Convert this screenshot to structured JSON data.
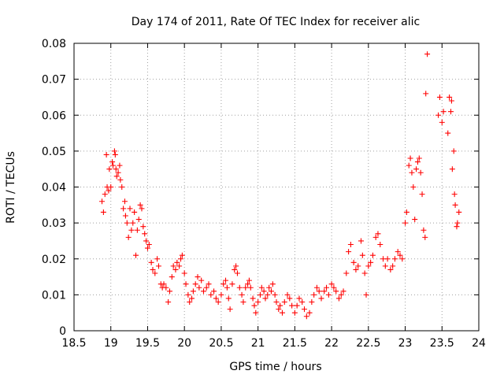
{
  "chart_data": {
    "type": "scatter",
    "title": "Day 174 of 2011, Rate Of TEC Index for receiver alic",
    "xlabel": "GPS time / hours",
    "ylabel": "ROTI / TECUs",
    "xlim": [
      18.5,
      24
    ],
    "ylim": [
      0,
      0.08
    ],
    "x_ticks": [
      "18.5",
      "19",
      "19.5",
      "20",
      "20.5",
      "21",
      "21.5",
      "22",
      "22.5",
      "23",
      "23.5",
      "24"
    ],
    "y_ticks": [
      "0",
      "0.01",
      "0.02",
      "0.03",
      "0.04",
      "0.05",
      "0.06",
      "0.07",
      "0.08"
    ],
    "grid": true,
    "marker": "plus",
    "color": "#ff0000",
    "points": [
      [
        18.88,
        0.036
      ],
      [
        18.9,
        0.033
      ],
      [
        18.92,
        0.038
      ],
      [
        18.94,
        0.049
      ],
      [
        18.95,
        0.04
      ],
      [
        18.97,
        0.039
      ],
      [
        18.98,
        0.045
      ],
      [
        19.0,
        0.04
      ],
      [
        19.02,
        0.047
      ],
      [
        19.03,
        0.046
      ],
      [
        19.05,
        0.05
      ],
      [
        19.06,
        0.049
      ],
      [
        19.07,
        0.045
      ],
      [
        19.08,
        0.043
      ],
      [
        19.1,
        0.044
      ],
      [
        19.12,
        0.046
      ],
      [
        19.13,
        0.042
      ],
      [
        19.15,
        0.04
      ],
      [
        19.17,
        0.034
      ],
      [
        19.19,
        0.036
      ],
      [
        19.2,
        0.032
      ],
      [
        19.22,
        0.03
      ],
      [
        19.24,
        0.026
      ],
      [
        19.26,
        0.034
      ],
      [
        19.28,
        0.028
      ],
      [
        19.3,
        0.03
      ],
      [
        19.32,
        0.033
      ],
      [
        19.34,
        0.021
      ],
      [
        19.36,
        0.028
      ],
      [
        19.38,
        0.031
      ],
      [
        19.4,
        0.035
      ],
      [
        19.42,
        0.034
      ],
      [
        19.44,
        0.029
      ],
      [
        19.46,
        0.027
      ],
      [
        19.48,
        0.025
      ],
      [
        19.5,
        0.023
      ],
      [
        19.52,
        0.024
      ],
      [
        19.55,
        0.019
      ],
      [
        19.57,
        0.017
      ],
      [
        19.6,
        0.016
      ],
      [
        19.63,
        0.02
      ],
      [
        19.65,
        0.018
      ],
      [
        19.68,
        0.013
      ],
      [
        19.7,
        0.012
      ],
      [
        19.72,
        0.013
      ],
      [
        19.75,
        0.012
      ],
      [
        19.78,
        0.008
      ],
      [
        19.8,
        0.011
      ],
      [
        19.83,
        0.015
      ],
      [
        19.85,
        0.018
      ],
      [
        19.88,
        0.017
      ],
      [
        19.9,
        0.019
      ],
      [
        19.93,
        0.018
      ],
      [
        19.95,
        0.02
      ],
      [
        19.97,
        0.021
      ],
      [
        20.0,
        0.016
      ],
      [
        20.02,
        0.013
      ],
      [
        20.05,
        0.01
      ],
      [
        20.07,
        0.008
      ],
      [
        20.1,
        0.009
      ],
      [
        20.12,
        0.011
      ],
      [
        20.15,
        0.013
      ],
      [
        20.18,
        0.015
      ],
      [
        20.2,
        0.012
      ],
      [
        20.23,
        0.014
      ],
      [
        20.26,
        0.011
      ],
      [
        20.3,
        0.012
      ],
      [
        20.33,
        0.013
      ],
      [
        20.36,
        0.01
      ],
      [
        20.4,
        0.011
      ],
      [
        20.43,
        0.009
      ],
      [
        20.46,
        0.008
      ],
      [
        20.5,
        0.01
      ],
      [
        20.53,
        0.013
      ],
      [
        20.56,
        0.014
      ],
      [
        20.58,
        0.012
      ],
      [
        20.6,
        0.009
      ],
      [
        20.62,
        0.006
      ],
      [
        20.65,
        0.013
      ],
      [
        20.68,
        0.017
      ],
      [
        20.7,
        0.018
      ],
      [
        20.72,
        0.016
      ],
      [
        20.75,
        0.012
      ],
      [
        20.78,
        0.01
      ],
      [
        20.8,
        0.008
      ],
      [
        20.83,
        0.012
      ],
      [
        20.86,
        0.013
      ],
      [
        20.88,
        0.014
      ],
      [
        20.9,
        0.012
      ],
      [
        20.93,
        0.009
      ],
      [
        20.95,
        0.007
      ],
      [
        20.97,
        0.005
      ],
      [
        21.0,
        0.008
      ],
      [
        21.03,
        0.01
      ],
      [
        21.05,
        0.012
      ],
      [
        21.08,
        0.011
      ],
      [
        21.1,
        0.009
      ],
      [
        21.13,
        0.01
      ],
      [
        21.15,
        0.012
      ],
      [
        21.18,
        0.011
      ],
      [
        21.2,
        0.013
      ],
      [
        21.23,
        0.01
      ],
      [
        21.25,
        0.008
      ],
      [
        21.28,
        0.006
      ],
      [
        21.3,
        0.007
      ],
      [
        21.33,
        0.005
      ],
      [
        21.36,
        0.008
      ],
      [
        21.4,
        0.01
      ],
      [
        21.43,
        0.009
      ],
      [
        21.46,
        0.007
      ],
      [
        21.5,
        0.005
      ],
      [
        21.53,
        0.007
      ],
      [
        21.56,
        0.009
      ],
      [
        21.6,
        0.008
      ],
      [
        21.63,
        0.006
      ],
      [
        21.66,
        0.004
      ],
      [
        21.7,
        0.005
      ],
      [
        21.73,
        0.008
      ],
      [
        21.76,
        0.01
      ],
      [
        21.8,
        0.012
      ],
      [
        21.83,
        0.011
      ],
      [
        21.86,
        0.009
      ],
      [
        21.9,
        0.011
      ],
      [
        21.93,
        0.012
      ],
      [
        21.96,
        0.01
      ],
      [
        22.0,
        0.013
      ],
      [
        22.03,
        0.012
      ],
      [
        22.06,
        0.011
      ],
      [
        22.1,
        0.009
      ],
      [
        22.13,
        0.01
      ],
      [
        22.16,
        0.011
      ],
      [
        22.2,
        0.016
      ],
      [
        22.23,
        0.022
      ],
      [
        22.26,
        0.024
      ],
      [
        22.3,
        0.019
      ],
      [
        22.33,
        0.017
      ],
      [
        22.36,
        0.018
      ],
      [
        22.4,
        0.025
      ],
      [
        22.42,
        0.021
      ],
      [
        22.45,
        0.016
      ],
      [
        22.47,
        0.01
      ],
      [
        22.5,
        0.018
      ],
      [
        22.53,
        0.019
      ],
      [
        22.56,
        0.021
      ],
      [
        22.6,
        0.026
      ],
      [
        22.63,
        0.027
      ],
      [
        22.66,
        0.024
      ],
      [
        22.7,
        0.02
      ],
      [
        22.73,
        0.018
      ],
      [
        22.76,
        0.02
      ],
      [
        22.8,
        0.017
      ],
      [
        22.83,
        0.018
      ],
      [
        22.86,
        0.02
      ],
      [
        22.9,
        0.022
      ],
      [
        22.93,
        0.021
      ],
      [
        22.96,
        0.02
      ],
      [
        23.0,
        0.03
      ],
      [
        23.02,
        0.033
      ],
      [
        23.05,
        0.046
      ],
      [
        23.07,
        0.048
      ],
      [
        23.09,
        0.044
      ],
      [
        23.11,
        0.04
      ],
      [
        23.13,
        0.031
      ],
      [
        23.15,
        0.045
      ],
      [
        23.17,
        0.047
      ],
      [
        23.19,
        0.048
      ],
      [
        23.21,
        0.044
      ],
      [
        23.23,
        0.038
      ],
      [
        23.25,
        0.028
      ],
      [
        23.27,
        0.026
      ],
      [
        23.3,
        0.077
      ],
      [
        23.28,
        0.066
      ],
      [
        23.45,
        0.06
      ],
      [
        23.47,
        0.065
      ],
      [
        23.5,
        0.058
      ],
      [
        23.52,
        0.061
      ],
      [
        23.58,
        0.055
      ],
      [
        23.6,
        0.065
      ],
      [
        23.62,
        0.061
      ],
      [
        23.63,
        0.064
      ],
      [
        23.64,
        0.045
      ],
      [
        23.66,
        0.05
      ],
      [
        23.67,
        0.038
      ],
      [
        23.68,
        0.035
      ],
      [
        23.7,
        0.029
      ],
      [
        23.71,
        0.03
      ],
      [
        23.73,
        0.033
      ]
    ]
  }
}
